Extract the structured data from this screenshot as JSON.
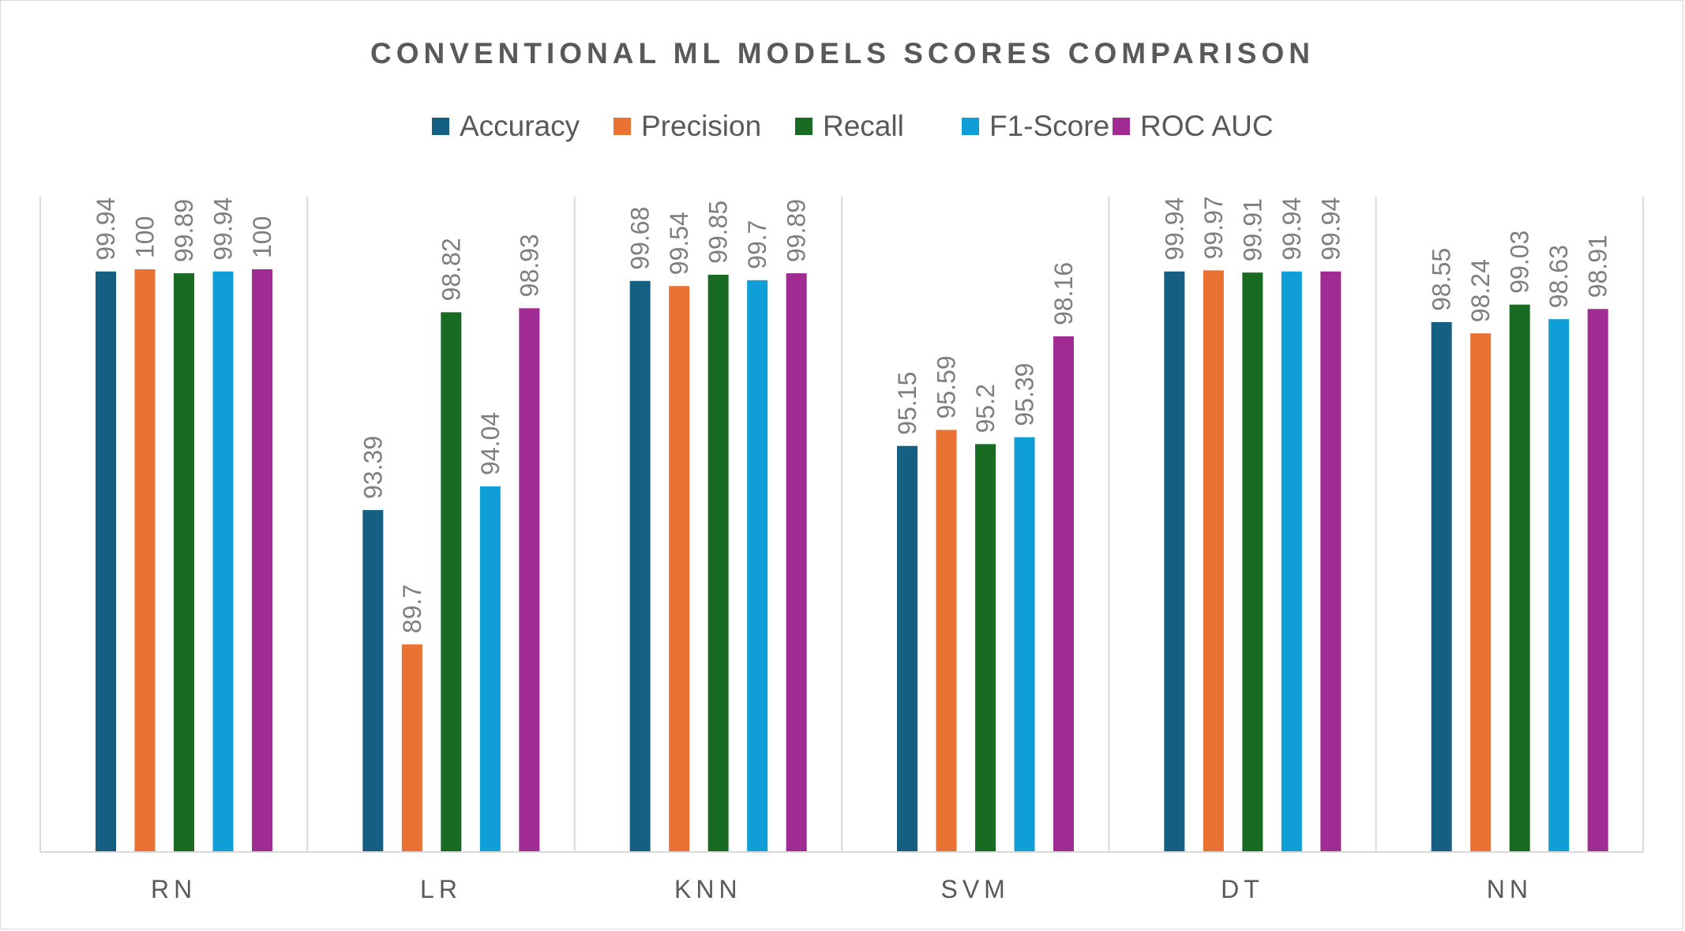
{
  "chart_data": {
    "type": "bar",
    "title": "CONVENTIONAL ML MODELS SCORES COMPARISON",
    "categories": [
      "RN",
      "LR",
      "KNN",
      "SVM",
      "DT",
      "NN"
    ],
    "series": [
      {
        "name": "Accuracy",
        "color": "#156082",
        "values": [
          99.94,
          93.39,
          99.68,
          95.15,
          99.94,
          98.55
        ]
      },
      {
        "name": "Precision",
        "color": "#E97132",
        "values": [
          100,
          89.7,
          99.54,
          95.59,
          99.97,
          98.24
        ]
      },
      {
        "name": "Recall",
        "color": "#196B24",
        "values": [
          99.89,
          98.82,
          99.85,
          95.2,
          99.91,
          99.03
        ]
      },
      {
        "name": "F1-Score",
        "color": "#0F9ED5",
        "values": [
          99.94,
          94.04,
          99.7,
          95.39,
          99.94,
          98.63
        ]
      },
      {
        "name": "ROC AUC",
        "color": "#A02B93",
        "values": [
          100,
          98.93,
          99.89,
          98.16,
          99.94,
          98.91
        ]
      }
    ],
    "ylim": [
      84,
      100
    ],
    "grid": false,
    "legend": "top-center",
    "data_labels": true
  }
}
